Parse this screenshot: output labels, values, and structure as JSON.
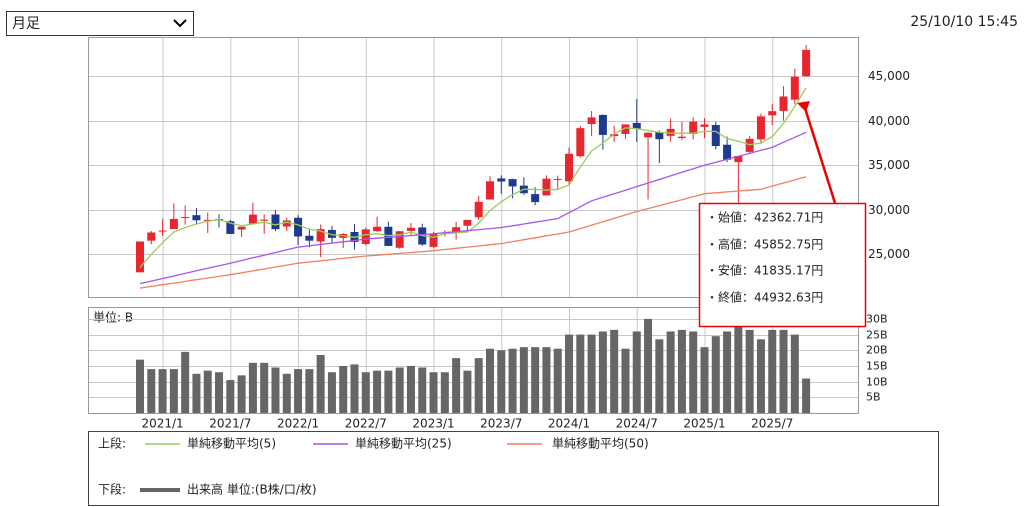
{
  "period_select": "月足",
  "timestamp": "25/10/10 15:45",
  "legend": {
    "upper_label": "上段:",
    "lower_label": "下段:"
  },
  "tooltip": {
    "lines": [
      "・始値：42362.71円",
      "・高値：45852.75円",
      "・安値：41835.17円",
      "・終値：44932.63円"
    ]
  },
  "chart_data": [
    {
      "type": "candlestick",
      "categories": [
        null,
        null,
        "2021/1",
        null,
        null,
        null,
        null,
        null,
        "2021/7",
        null,
        null,
        null,
        null,
        null,
        "2022/1",
        null,
        null,
        null,
        null,
        null,
        "2022/7",
        null,
        null,
        null,
        null,
        null,
        "2023/1",
        null,
        null,
        null,
        null,
        null,
        "2023/7",
        null,
        null,
        null,
        null,
        null,
        "2024/1",
        null,
        null,
        null,
        null,
        null,
        "2024/7",
        null,
        null,
        null,
        null,
        null,
        "2025/1",
        null,
        null,
        null,
        null,
        null,
        "2025/7",
        null,
        null,
        null
      ],
      "open": [
        22977,
        26525,
        27575,
        27839,
        29154,
        29389,
        28806,
        28948,
        28707,
        27781,
        28451,
        28771,
        29467,
        28116,
        29098,
        27078,
        26436,
        27737,
        26847,
        27502,
        26153,
        27594,
        28089,
        25728,
        27621,
        28012,
        25834,
        27402,
        27502,
        28203,
        29157,
        31148,
        33517,
        33441,
        32711,
        31759,
        31601,
        33450,
        33193,
        36011,
        39628,
        40646,
        38274,
        38513,
        39747,
        38140,
        38700,
        38300,
        38053,
        38513,
        39307,
        39513,
        37300,
        35350,
        36500,
        37900,
        40600,
        41100,
        42362.71,
        45000
      ],
      "high": [
        26433,
        27602,
        28979,
        30714,
        30485,
        30208,
        29685,
        29480,
        28852,
        28139,
        30795,
        29489,
        29960,
        29121,
        29388,
        27880,
        28338,
        28188,
        27369,
        28389,
        28002,
        29222,
        28659,
        27587,
        28502,
        28423,
        27502,
        27697,
        28623,
        28856,
        31560,
        33772,
        33853,
        33488,
        33634,
        32533,
        33853,
        33824,
        36984,
        39427,
        41087,
        40697,
        39437,
        39500,
        42426,
        38700,
        38900,
        40257,
        39884,
        40398,
        40288,
        39865,
        38220,
        36046,
        38300,
        40800,
        41900,
        43876,
        45852.75,
        48500
      ],
      "low": [
        22948,
        26123,
        27055,
        27839,
        28308,
        28419,
        27385,
        28010,
        27272,
        26954,
        28451,
        27293,
        27588,
        27594,
        26044,
        25775,
        24681,
        26304,
        25688,
        25520,
        25981,
        27509,
        25937,
        25621,
        27146,
        25953,
        25662,
        27025,
        26632,
        27427,
        28856,
        31148,
        31791,
        31275,
        31674,
        30487,
        31601,
        32205,
        32693,
        35854,
        38271,
        36733,
        37617,
        37950,
        37611,
        31156,
        35247,
        37651,
        37798,
        37897,
        38055,
        36793,
        35336,
        30793,
        36300,
        37400,
        39500,
        40000,
        41835.17,
        44900
      ],
      "close": [
        26433,
        27444,
        27663,
        28966,
        29178,
        28812,
        28860,
        28791,
        27283,
        28089,
        29452,
        28892,
        27821,
        28791,
        27001,
        26526,
        27821,
        26847,
        27279,
        26393,
        27801,
        28091,
        25937,
        27587,
        27968,
        26095,
        27327,
        27446,
        28041,
        28856,
        30888,
        33189,
        33172,
        32619,
        31858,
        30859,
        33487,
        33464,
        36287,
        39166,
        40369,
        38405,
        38487,
        39583,
        39101,
        38647,
        37919,
        39081,
        38208,
        39894,
        39572,
        37156,
        35617,
        36045,
        37965,
        40487,
        41069,
        42718,
        44932.63,
        47950
      ],
      "up_color": "#e8262f",
      "down_color": "#1f3a8c",
      "series": [
        {
          "name": "単純移動平均(5)",
          "color": "#9acd5a",
          "values": [
            23500,
            25000,
            26300,
            27500,
            28000,
            28400,
            28700,
            28900,
            28500,
            28200,
            28400,
            28600,
            28300,
            28600,
            28300,
            27800,
            27600,
            27200,
            27100,
            26900,
            27200,
            27300,
            27100,
            27200,
            27500,
            27100,
            26900,
            27300,
            27400,
            27500,
            28500,
            29900,
            30900,
            31700,
            32300,
            32300,
            32200,
            32300,
            32800,
            34800,
            36600,
            37500,
            38500,
            39200,
            39100,
            38900,
            38700,
            38600,
            38600,
            38600,
            38800,
            38800,
            38000,
            37700,
            37300,
            37500,
            38200,
            39700,
            41600,
            43700
          ]
        },
        {
          "name": "単純移動平均(25)",
          "color": "#a855e8",
          "values": [
            21700,
            21990,
            22280,
            22560,
            22850,
            23140,
            23420,
            23710,
            24000,
            24300,
            24600,
            24900,
            25200,
            25500,
            25800,
            25950,
            26100,
            26250,
            26400,
            26550,
            26700,
            26800,
            26900,
            27000,
            27100,
            27200,
            27300,
            27420,
            27530,
            27650,
            27770,
            27880,
            28000,
            28200,
            28400,
            28600,
            28800,
            29000,
            29670,
            30330,
            31000,
            31400,
            31800,
            32200,
            32600,
            33000,
            33400,
            33800,
            34200,
            34600,
            35000,
            35330,
            35670,
            36000,
            36330,
            36670,
            37000,
            37570,
            38130,
            38700
          ]
        },
        {
          "name": "単純移動平均(50)",
          "color": "#f08060",
          "values": [
            21200,
            21390,
            21580,
            21760,
            21950,
            22140,
            22330,
            22510,
            22700,
            22920,
            23130,
            23350,
            23570,
            23780,
            24000,
            24130,
            24270,
            24400,
            24530,
            24670,
            24800,
            24900,
            25000,
            25100,
            25200,
            25300,
            25400,
            25530,
            25670,
            25800,
            25930,
            26070,
            26200,
            26420,
            26630,
            26850,
            27070,
            27280,
            27500,
            27880,
            28270,
            28650,
            29030,
            29420,
            29800,
            30130,
            30470,
            30800,
            31130,
            31470,
            31800,
            31900,
            32000,
            32100,
            32200,
            32300,
            32650,
            33000,
            33350,
            33700
          ]
        }
      ],
      "ylim": [
        20200,
        49400
      ],
      "yticks": [
        {
          "value": 25000,
          "label": "25,000"
        },
        {
          "value": 30000,
          "label": "30,000"
        },
        {
          "value": 35000,
          "label": "35,000"
        },
        {
          "value": 40000,
          "label": "40,000"
        },
        {
          "value": 45000,
          "label": "45,000"
        }
      ],
      "grid": true
    },
    {
      "type": "bar",
      "unit_label": "単位: B",
      "series": [
        {
          "name": "出来高 単位:(B株/口/枚)",
          "color": "#666666",
          "values": [
            17,
            14,
            14,
            14,
            19.5,
            12.5,
            13.5,
            13,
            10.5,
            12,
            16,
            16,
            14.5,
            12.5,
            14,
            14,
            18.5,
            13,
            15,
            15.5,
            13,
            13.5,
            13.5,
            14.5,
            15,
            14.5,
            13,
            13,
            17.5,
            13.5,
            17.5,
            20.5,
            20,
            20.5,
            21,
            21,
            21,
            20.5,
            25,
            25,
            25,
            26,
            26.5,
            20.5,
            26,
            30,
            23.5,
            26,
            26.5,
            26,
            21,
            24.5,
            26,
            28,
            26.5,
            23.5,
            26.5,
            26.5,
            25,
            11
          ]
        }
      ],
      "ylim": [
        0,
        33.8
      ],
      "yticks": [
        {
          "value": 5,
          "label": "5B"
        },
        {
          "value": 10,
          "label": "10B"
        },
        {
          "value": 15,
          "label": "15B"
        },
        {
          "value": 20,
          "label": "20B"
        },
        {
          "value": 25,
          "label": "25B"
        },
        {
          "value": 30,
          "label": "30B"
        }
      ],
      "grid": true
    }
  ]
}
